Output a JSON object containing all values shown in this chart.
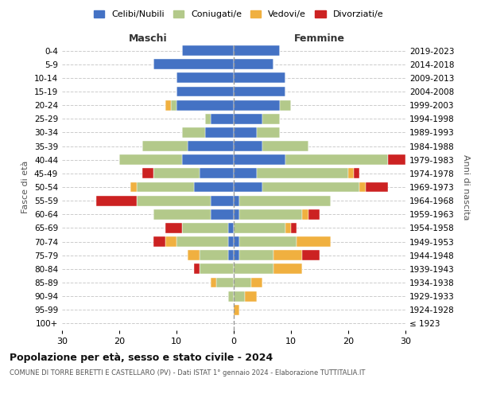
{
  "age_groups": [
    "100+",
    "95-99",
    "90-94",
    "85-89",
    "80-84",
    "75-79",
    "70-74",
    "65-69",
    "60-64",
    "55-59",
    "50-54",
    "45-49",
    "40-44",
    "35-39",
    "30-34",
    "25-29",
    "20-24",
    "15-19",
    "10-14",
    "5-9",
    "0-4"
  ],
  "year_labels": [
    "≤ 1923",
    "1924-1928",
    "1929-1933",
    "1934-1938",
    "1939-1943",
    "1944-1948",
    "1949-1953",
    "1954-1958",
    "1959-1963",
    "1964-1968",
    "1969-1973",
    "1974-1978",
    "1979-1983",
    "1984-1988",
    "1989-1993",
    "1994-1998",
    "1999-2003",
    "2004-2008",
    "2009-2013",
    "2014-2018",
    "2019-2023"
  ],
  "colors": {
    "celibi": "#4472C4",
    "coniugati": "#B3C98A",
    "vedovi": "#F0B040",
    "divorziati": "#CC2222"
  },
  "males": {
    "celibi": [
      0,
      0,
      0,
      0,
      0,
      1,
      1,
      1,
      4,
      4,
      7,
      6,
      9,
      8,
      5,
      4,
      10,
      10,
      10,
      14,
      9
    ],
    "coniugati": [
      0,
      0,
      1,
      3,
      6,
      5,
      9,
      8,
      10,
      13,
      10,
      8,
      11,
      8,
      4,
      1,
      1,
      0,
      0,
      0,
      0
    ],
    "vedovi": [
      0,
      0,
      0,
      1,
      0,
      2,
      2,
      0,
      0,
      0,
      1,
      0,
      0,
      0,
      0,
      0,
      1,
      0,
      0,
      0,
      0
    ],
    "divorziati": [
      0,
      0,
      0,
      0,
      1,
      0,
      2,
      3,
      0,
      7,
      0,
      2,
      0,
      0,
      0,
      0,
      0,
      0,
      0,
      0,
      0
    ]
  },
  "females": {
    "celibi": [
      0,
      0,
      0,
      0,
      0,
      1,
      1,
      0,
      1,
      1,
      5,
      4,
      9,
      5,
      4,
      5,
      8,
      9,
      9,
      7,
      8
    ],
    "coniugati": [
      0,
      0,
      2,
      3,
      7,
      6,
      10,
      9,
      11,
      16,
      17,
      16,
      18,
      8,
      4,
      3,
      2,
      0,
      0,
      0,
      0
    ],
    "vedovi": [
      0,
      1,
      2,
      2,
      5,
      5,
      6,
      1,
      1,
      0,
      1,
      1,
      0,
      0,
      0,
      0,
      0,
      0,
      0,
      0,
      0
    ],
    "divorziati": [
      0,
      0,
      0,
      0,
      0,
      3,
      0,
      1,
      2,
      0,
      4,
      1,
      3,
      0,
      0,
      0,
      0,
      0,
      0,
      0,
      0
    ]
  },
  "title_main": "Popolazione per età, sesso e stato civile - 2024",
  "title_sub": "COMUNE DI TORRE BERETTI E CASTELLARO (PV) - Dati ISTAT 1° gennaio 2024 - Elaborazione TUTTITALIA.IT",
  "xlabel_left": "Maschi",
  "xlabel_right": "Femmine",
  "ylabel_left": "Fasce di età",
  "ylabel_right": "Anni di nascita",
  "xlim": 30,
  "legend_labels": [
    "Celibi/Nubili",
    "Coniugati/e",
    "Vedovi/e",
    "Divorziati/e"
  ],
  "background_color": "#FFFFFF",
  "grid_color": "#CCCCCC"
}
